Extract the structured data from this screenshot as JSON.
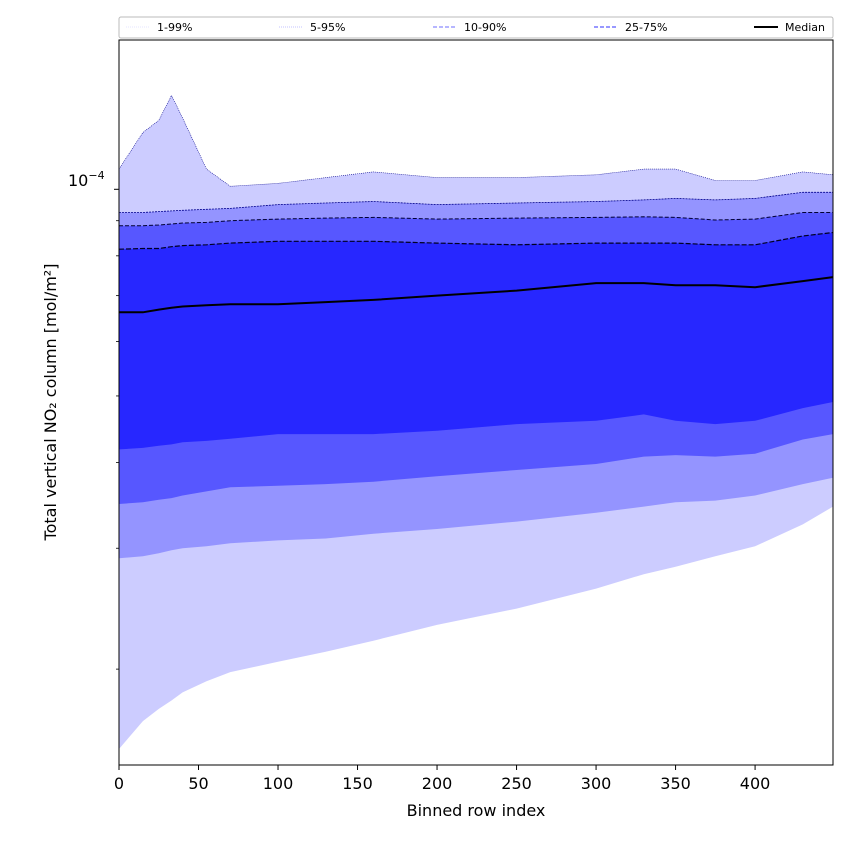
{
  "chart_data": {
    "type": "area",
    "xlabel": "Binned row index",
    "ylabel": "Total vertical NO₂ column [mol/m²]",
    "xlim": [
      0,
      449
    ],
    "ylim": [
      1.45e-05,
      0.000165
    ],
    "yscale": "log",
    "x_ticks": [
      0,
      50,
      100,
      150,
      200,
      250,
      300,
      350,
      400
    ],
    "y_tick_label": "10",
    "y_tick_exponent": "−4",
    "y_tick_value": 0.0001,
    "legend_position": "top",
    "legend": [
      {
        "label": "1-99%",
        "style": "dotted"
      },
      {
        "label": "5-95%",
        "style": "dotted"
      },
      {
        "label": "10-90%",
        "style": "dashed"
      },
      {
        "label": "25-75%",
        "style": "dashed"
      },
      {
        "label": "Median",
        "style": "solid"
      }
    ],
    "colors": {
      "band_1_99": "#ccccff",
      "band_5_95": "#9494ff",
      "band_10_90": "#5757ff",
      "band_25_75": "#2727ff",
      "median": "#000000",
      "outline": "#00008b"
    },
    "x": [
      0,
      15,
      25,
      33,
      40,
      55,
      70,
      100,
      130,
      160,
      200,
      250,
      300,
      330,
      350,
      375,
      400,
      430,
      449
    ],
    "series": [
      {
        "name": "1-99% upper",
        "values": [
          0.000107,
          0.000121,
          0.000126,
          0.000137,
          0.000127,
          0.000107,
          0.000101,
          0.000102,
          0.000104,
          0.000106,
          0.000104,
          0.000104,
          0.000105,
          0.000107,
          0.000107,
          0.000103,
          0.000103,
          0.000106,
          0.000105
        ]
      },
      {
        "name": "5-95% upper",
        "values": [
          9.25e-05,
          9.25e-05,
          9.28e-05,
          9.3e-05,
          9.32e-05,
          9.35e-05,
          9.38e-05,
          9.5e-05,
          9.55e-05,
          9.6e-05,
          9.5e-05,
          9.55e-05,
          9.6e-05,
          9.65e-05,
          9.7e-05,
          9.65e-05,
          9.7e-05,
          9.9e-05,
          9.9e-05
        ]
      },
      {
        "name": "10-90% upper",
        "values": [
          8.85e-05,
          8.85e-05,
          8.87e-05,
          8.9e-05,
          8.93e-05,
          8.95e-05,
          9e-05,
          9.05e-05,
          9.08e-05,
          9.1e-05,
          9.05e-05,
          9.08e-05,
          9.1e-05,
          9.12e-05,
          9.1e-05,
          9.02e-05,
          9.05e-05,
          9.25e-05,
          9.25e-05
        ]
      },
      {
        "name": "25-75% upper",
        "values": [
          8.18e-05,
          8.2e-05,
          8.2e-05,
          8.25e-05,
          8.28e-05,
          8.3e-05,
          8.35e-05,
          8.4e-05,
          8.4e-05,
          8.4e-05,
          8.35e-05,
          8.3e-05,
          8.35e-05,
          8.35e-05,
          8.35e-05,
          8.3e-05,
          8.3e-05,
          8.55e-05,
          8.65e-05
        ]
      },
      {
        "name": "Median",
        "values": [
          6.62e-05,
          6.62e-05,
          6.68e-05,
          6.72e-05,
          6.75e-05,
          6.78e-05,
          6.8e-05,
          6.8e-05,
          6.85e-05,
          6.9e-05,
          7e-05,
          7.12e-05,
          7.3e-05,
          7.3e-05,
          7.25e-05,
          7.25e-05,
          7.2e-05,
          7.35e-05,
          7.45e-05
        ]
      },
      {
        "name": "25-75% lower",
        "values": [
          4.18e-05,
          4.2e-05,
          4.23e-05,
          4.25e-05,
          4.28e-05,
          4.3e-05,
          4.33e-05,
          4.4e-05,
          4.4e-05,
          4.4e-05,
          4.45e-05,
          4.55e-05,
          4.6e-05,
          4.7e-05,
          4.6e-05,
          4.55e-05,
          4.6e-05,
          4.8e-05,
          4.9e-05
        ]
      },
      {
        "name": "10-90% lower",
        "values": [
          3.48e-05,
          3.5e-05,
          3.53e-05,
          3.55e-05,
          3.58e-05,
          3.63e-05,
          3.68e-05,
          3.7e-05,
          3.72e-05,
          3.75e-05,
          3.82e-05,
          3.9e-05,
          3.98e-05,
          4.08e-05,
          4.1e-05,
          4.08e-05,
          4.12e-05,
          4.32e-05,
          4.4e-05
        ]
      },
      {
        "name": "5-95% lower",
        "values": [
          2.9e-05,
          2.92e-05,
          2.95e-05,
          2.98e-05,
          3e-05,
          3.02e-05,
          3.05e-05,
          3.08e-05,
          3.1e-05,
          3.15e-05,
          3.2e-05,
          3.28e-05,
          3.38e-05,
          3.45e-05,
          3.5e-05,
          3.52e-05,
          3.58e-05,
          3.72e-05,
          3.8e-05
        ]
      },
      {
        "name": "1-99% lower",
        "values": [
          1.53e-05,
          1.68e-05,
          1.75e-05,
          1.8e-05,
          1.85e-05,
          1.92e-05,
          1.98e-05,
          2.05e-05,
          2.12e-05,
          2.2e-05,
          2.32e-05,
          2.45e-05,
          2.62e-05,
          2.75e-05,
          2.82e-05,
          2.92e-05,
          3.02e-05,
          3.25e-05,
          3.45e-05
        ]
      }
    ]
  }
}
